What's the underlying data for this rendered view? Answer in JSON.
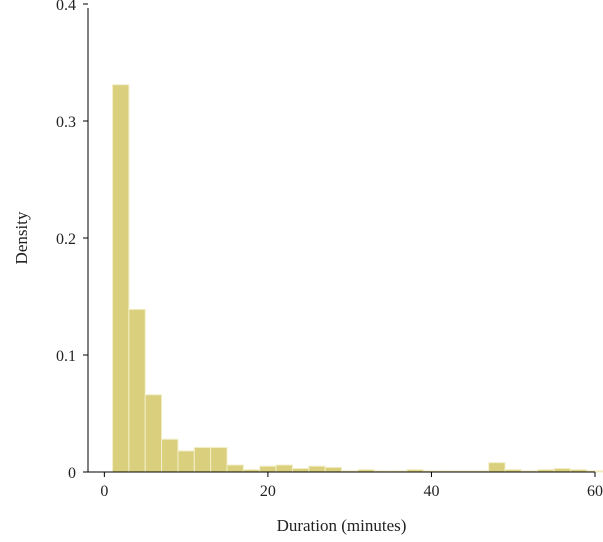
{
  "chart_data": {
    "type": "bar",
    "title": "",
    "xlabel": "Duration (minutes)",
    "ylabel": "Density",
    "xlim": [
      -2,
      60
    ],
    "ylim": [
      0,
      0.4
    ],
    "x_ticks": [
      0,
      20,
      40,
      60
    ],
    "y_ticks": [
      0,
      0.1,
      0.2,
      0.3,
      0.4
    ],
    "grid": false,
    "bar_color": "#d9cf7c",
    "bin_edges": [
      1,
      3,
      5,
      7,
      9,
      11,
      13,
      15,
      17,
      19,
      21,
      23,
      25,
      27,
      29,
      31,
      33,
      35,
      37,
      39,
      41,
      43,
      45,
      47,
      49,
      51,
      53,
      55,
      57,
      59
    ],
    "values": [
      0.331,
      0.139,
      0.066,
      0.028,
      0.018,
      0.021,
      0.021,
      0.006,
      0.002,
      0.005,
      0.006,
      0.003,
      0.005,
      0.004,
      0.001,
      0.002,
      0.001,
      0.001,
      0.002,
      0.001,
      0.001,
      0.001,
      0.001,
      0.008,
      0.002,
      0.001,
      0.002,
      0.003,
      0.002,
      0.001
    ]
  }
}
